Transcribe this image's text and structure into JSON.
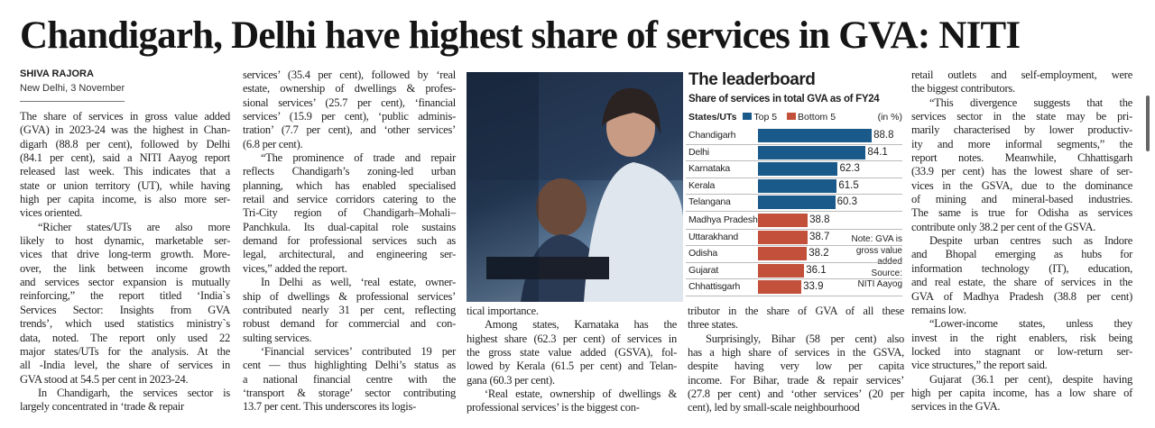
{
  "headline": "Chandigarh, Delhi have highest share of services in GVA: NITI",
  "byline": "SHIVA RAJORA",
  "dateline": "New Delhi, 3 November",
  "columns": [
    {
      "paragraphs": [
        [
          "The share of services in gross value added",
          "(GVA) in 2023-24 was the highest in Chan-",
          "digarh (88.8 per cent), followed by Delhi",
          "(84.1 per cent), said a NITI Aayog report",
          "released last week. This indicates that a",
          "state or union territory (UT), while having",
          "high per capita income, is also more ser-",
          "vices oriented."
        ],
        [
          "“Richer states/UTs are also more",
          "likely to host dynamic, marketable ser-",
          "vices that drive long-term growth. More-",
          "over, the link between income growth",
          "and services sector expansion is mutually",
          "reinforcing,” the report titled ‘India`s",
          "Services Sector: Insights from GVA",
          "trends’, which used statistics ministry`s",
          "data, noted.  The report only used 22",
          "major states/UTs for the analysis. At the",
          "all -India level, the share of services in",
          "GVA stood at 54.5 per cent in 2023-24."
        ],
        [
          "In Chandigarh, the services sector is",
          "largely concentrated in ‘trade & repair"
        ]
      ]
    },
    {
      "paragraphs": [
        [
          "services’ (35.4 per cent), followed by ‘real",
          "estate, ownership of dwellings & profes-",
          "sional services’ (25.7 per cent), ‘financial",
          "services’ (15.9 per cent), ‘public adminis-",
          "tration’ (7.7 per cent), and ‘other services’",
          "(6.8 per cent)."
        ],
        [
          "“The prominence of trade and repair",
          "reflects Chandigarh’s zoning-led urban",
          "planning, which has enabled specialised",
          "retail and service corridors catering to the",
          "Tri-City region of Chandigarh–Mohali–",
          "Panchkula. Its dual-capital role sustains",
          "demand for professional services such as",
          "legal, architectural, and engineering ser-",
          "vices,” added the report."
        ],
        [
          "In Delhi as well, ‘real estate, owner-",
          "ship of dwellings & professional services’",
          "contributed nearly 31 per cent, reflecting",
          "robust demand for commercial and con-",
          "sulting services."
        ],
        [
          "‘Financial services’ contributed 19 per",
          "cent — thus highlighting Delhi’s status as",
          "a national financial centre with the",
          "‘transport & storage’ sector contributing",
          "13.7 per cent. This underscores its logis-"
        ]
      ]
    },
    {
      "paragraphs": [
        [
          "tical importance."
        ],
        [
          "Among states, Karnataka has the",
          "highest share (62.3 per cent) of services in",
          "the gross state value added (GSVA), fol-",
          "lowed by Kerala (61.5 per cent) and Telan-",
          "gana (60.3 per cent)."
        ],
        [
          "‘Real estate, ownership of dwellings &",
          "professional services’ is the biggest con-"
        ]
      ]
    },
    {
      "paragraphs": [
        [
          "tributor in the share of GVA of all these",
          "three states."
        ],
        [
          "Surprisingly, Bihar (58 per cent) also",
          "has a high share of services in the GSVA,",
          "despite having very low per capita",
          "income. For Bihar, trade & repair services’",
          "(27.8 per cent) and ‘other services’ (20 per",
          "cent), led by small-scale neighbourhood"
        ]
      ]
    },
    {
      "paragraphs": [
        [
          "retail outlets and self-employment, were",
          "the biggest contributors."
        ],
        [
          "“This divergence suggests that the",
          "services sector in the state may be pri-",
          "marily characterised by lower productiv-",
          "ity and more informal segments,” the",
          "report notes. Meanwhile, Chhattisgarh",
          "(33.9 per cent) has the lowest share of ser-",
          "vices in the GSVA, due to the dominance",
          "of mining and mineral-based industries.",
          "The same is true for Odisha as services",
          "contribute only 38.2 per cent of the GSVA."
        ],
        [
          "Despite urban centres such as Indore",
          "and Bhopal emerging as hubs for",
          "information technology (IT), education,",
          "and real estate, the share of services in the",
          "GVA of Madhya Pradesh (38.8 per cent)",
          "remains low."
        ],
        [
          "“Lower-income states, unless they",
          "invest in the right enablers, risk being",
          "locked into stagnant or low-return ser-",
          "vice structures,” the report said."
        ],
        [
          "Gujarat (36.1 per cent), despite having",
          "high per capita income, has a low share of",
          "services in the GVA."
        ]
      ]
    }
  ],
  "chart_data": {
    "type": "bar",
    "title": "The leaderboard",
    "subtitle": "Share of services in total GVA as of FY24",
    "xlabel": "States/UTs",
    "unit": "(in %)",
    "legend": [
      {
        "name": "Top 5",
        "color": "#1a5a8a"
      },
      {
        "name": "Bottom 5",
        "color": "#c2503a"
      }
    ],
    "categories": [
      "Chandigarh",
      "Delhi",
      "Karnataka",
      "Kerala",
      "Telangana",
      "Madhya Pradesh",
      "Uttarakhand",
      "Odisha",
      "Gujarat",
      "Chhattisgarh"
    ],
    "values": [
      88.8,
      84.1,
      62.3,
      61.5,
      60.3,
      38.8,
      38.7,
      38.2,
      36.1,
      33.9
    ],
    "groups": [
      "Top 5",
      "Top 5",
      "Top 5",
      "Top 5",
      "Top 5",
      "Bottom 5",
      "Bottom 5",
      "Bottom 5",
      "Bottom 5",
      "Bottom 5"
    ],
    "note": [
      "Note: GVA is",
      "gross value",
      "added",
      "Source:",
      "NITI Aayog"
    ]
  }
}
